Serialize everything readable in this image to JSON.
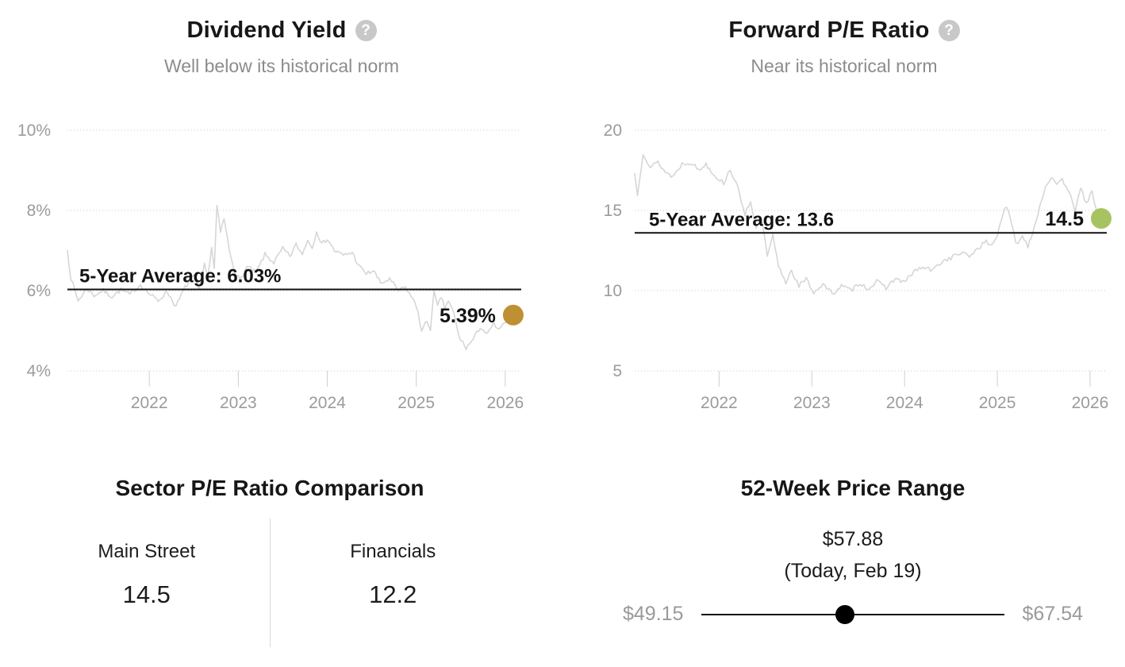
{
  "chart_data": [
    {
      "id": "dividend-yield",
      "type": "line",
      "title": "Dividend Yield",
      "help_icon": "?",
      "subtitle": "Well below its historical norm",
      "y_ticks": [
        4,
        6,
        8,
        10
      ],
      "y_tick_labels": [
        "4%",
        "6%",
        "8%",
        "10%"
      ],
      "x_ticks": [
        2022,
        2023,
        2024,
        2025,
        2026
      ],
      "x_range": [
        2021.08,
        2026.18
      ],
      "ylim": [
        3.6,
        10.3
      ],
      "grid": "dotted-horizontal",
      "average_value": 6.03,
      "average_label": "5-Year Average: 6.03%",
      "current_value": 5.39,
      "current_label": "5.39%",
      "current_x": 2026.09,
      "dot_color": "#bf8f33",
      "series_color": "#d6d6d6",
      "series": [
        [
          2021.08,
          7.0
        ],
        [
          2021.12,
          6.3
        ],
        [
          2021.2,
          5.75
        ],
        [
          2021.3,
          6.05
        ],
        [
          2021.38,
          5.88
        ],
        [
          2021.48,
          6.0
        ],
        [
          2021.58,
          5.85
        ],
        [
          2021.68,
          6.02
        ],
        [
          2021.78,
          5.9
        ],
        [
          2021.9,
          6.15
        ],
        [
          2022.0,
          5.92
        ],
        [
          2022.1,
          5.75
        ],
        [
          2022.2,
          5.98
        ],
        [
          2022.3,
          5.6
        ],
        [
          2022.4,
          6.08
        ],
        [
          2022.5,
          6.35
        ],
        [
          2022.56,
          6.0
        ],
        [
          2022.62,
          6.65
        ],
        [
          2022.66,
          6.4
        ],
        [
          2022.7,
          7.05
        ],
        [
          2022.73,
          6.55
        ],
        [
          2022.76,
          8.1
        ],
        [
          2022.8,
          7.45
        ],
        [
          2022.84,
          7.8
        ],
        [
          2022.9,
          7.0
        ],
        [
          2022.96,
          6.5
        ],
        [
          2023.02,
          6.25
        ],
        [
          2023.1,
          6.6
        ],
        [
          2023.2,
          6.45
        ],
        [
          2023.3,
          6.9
        ],
        [
          2023.4,
          6.7
        ],
        [
          2023.5,
          7.05
        ],
        [
          2023.58,
          6.85
        ],
        [
          2023.65,
          7.15
        ],
        [
          2023.72,
          6.9
        ],
        [
          2023.78,
          7.28
        ],
        [
          2023.83,
          7.05
        ],
        [
          2023.88,
          7.5
        ],
        [
          2023.94,
          7.15
        ],
        [
          2024.0,
          7.3
        ],
        [
          2024.08,
          7.0
        ],
        [
          2024.18,
          6.88
        ],
        [
          2024.28,
          6.95
        ],
        [
          2024.36,
          6.6
        ],
        [
          2024.44,
          6.42
        ],
        [
          2024.52,
          6.5
        ],
        [
          2024.6,
          6.18
        ],
        [
          2024.7,
          6.28
        ],
        [
          2024.8,
          6.0
        ],
        [
          2024.88,
          6.08
        ],
        [
          2024.96,
          5.8
        ],
        [
          2025.02,
          5.5
        ],
        [
          2025.06,
          4.97
        ],
        [
          2025.12,
          5.25
        ],
        [
          2025.16,
          5.05
        ],
        [
          2025.2,
          5.96
        ],
        [
          2025.24,
          5.6
        ],
        [
          2025.28,
          5.85
        ],
        [
          2025.32,
          5.55
        ],
        [
          2025.36,
          5.75
        ],
        [
          2025.42,
          5.45
        ],
        [
          2025.48,
          4.85
        ],
        [
          2025.56,
          4.57
        ],
        [
          2025.64,
          4.78
        ],
        [
          2025.72,
          5.1
        ],
        [
          2025.8,
          4.9
        ],
        [
          2025.87,
          5.18
        ],
        [
          2025.93,
          5.0
        ],
        [
          2026.0,
          5.22
        ],
        [
          2026.05,
          5.12
        ],
        [
          2026.09,
          5.39
        ]
      ]
    },
    {
      "id": "forward-pe-ratio",
      "type": "line",
      "title": "Forward P/E Ratio",
      "help_icon": "?",
      "subtitle": "Near its historical norm",
      "y_ticks": [
        5,
        10,
        15,
        20
      ],
      "y_tick_labels": [
        "5",
        "10",
        "15",
        "20"
      ],
      "x_ticks": [
        2022,
        2023,
        2024,
        2025,
        2026
      ],
      "x_range": [
        2021.09,
        2026.18
      ],
      "ylim": [
        3,
        21
      ],
      "grid": "dotted-horizontal",
      "average_value": 13.6,
      "average_label": "5-Year Average: 13.6",
      "current_value": 14.5,
      "current_label": "14.5",
      "current_x": 2026.12,
      "dot_color": "#a7c361",
      "series_color": "#d6d6d6",
      "series": [
        [
          2021.09,
          17.3
        ],
        [
          2021.12,
          15.9
        ],
        [
          2021.18,
          18.6
        ],
        [
          2021.26,
          17.7
        ],
        [
          2021.34,
          18.0
        ],
        [
          2021.42,
          17.4
        ],
        [
          2021.5,
          17.1
        ],
        [
          2021.6,
          17.9
        ],
        [
          2021.7,
          18.0
        ],
        [
          2021.78,
          17.5
        ],
        [
          2021.86,
          17.9
        ],
        [
          2021.95,
          17.2
        ],
        [
          2022.05,
          16.7
        ],
        [
          2022.12,
          17.6
        ],
        [
          2022.2,
          16.4
        ],
        [
          2022.28,
          14.8
        ],
        [
          2022.34,
          15.6
        ],
        [
          2022.4,
          13.8
        ],
        [
          2022.46,
          14.5
        ],
        [
          2022.52,
          12.1
        ],
        [
          2022.58,
          13.4
        ],
        [
          2022.64,
          11.5
        ],
        [
          2022.72,
          10.5
        ],
        [
          2022.78,
          11.3
        ],
        [
          2022.86,
          10.3
        ],
        [
          2022.94,
          10.7
        ],
        [
          2023.02,
          9.9
        ],
        [
          2023.12,
          10.4
        ],
        [
          2023.22,
          9.8
        ],
        [
          2023.32,
          10.3
        ],
        [
          2023.42,
          10.0
        ],
        [
          2023.52,
          10.5
        ],
        [
          2023.6,
          10.1
        ],
        [
          2023.7,
          10.55
        ],
        [
          2023.8,
          10.2
        ],
        [
          2023.9,
          10.75
        ],
        [
          2024.0,
          10.5
        ],
        [
          2024.1,
          11.2
        ],
        [
          2024.2,
          11.45
        ],
        [
          2024.3,
          11.25
        ],
        [
          2024.4,
          11.8
        ],
        [
          2024.5,
          12.05
        ],
        [
          2024.6,
          12.35
        ],
        [
          2024.7,
          12.15
        ],
        [
          2024.8,
          12.7
        ],
        [
          2024.88,
          13.05
        ],
        [
          2024.94,
          12.8
        ],
        [
          2025.0,
          13.5
        ],
        [
          2025.06,
          14.8
        ],
        [
          2025.1,
          15.2
        ],
        [
          2025.15,
          14.3
        ],
        [
          2025.2,
          12.9
        ],
        [
          2025.27,
          13.4
        ],
        [
          2025.33,
          12.8
        ],
        [
          2025.4,
          14.0
        ],
        [
          2025.46,
          15.3
        ],
        [
          2025.52,
          16.5
        ],
        [
          2025.58,
          17.1
        ],
        [
          2025.64,
          16.5
        ],
        [
          2025.7,
          16.9
        ],
        [
          2025.78,
          16.2
        ],
        [
          2025.84,
          15.0
        ],
        [
          2025.9,
          16.3
        ],
        [
          2025.96,
          15.5
        ],
        [
          2026.02,
          16.1
        ],
        [
          2026.07,
          14.9
        ],
        [
          2026.12,
          14.5
        ]
      ]
    }
  ],
  "sector_comparison": {
    "title": "Sector P/E Ratio Comparison",
    "columns": [
      {
        "label": "Main Street",
        "value": "14.5"
      },
      {
        "label": "Financials",
        "value": "12.2"
      }
    ]
  },
  "price_range": {
    "title": "52-Week Price Range",
    "current_label": "$57.88",
    "current_sub": "(Today, Feb 19)",
    "low_label": "$49.15",
    "high_label": "$67.54",
    "low": 49.15,
    "high": 67.54,
    "current": 57.88
  }
}
